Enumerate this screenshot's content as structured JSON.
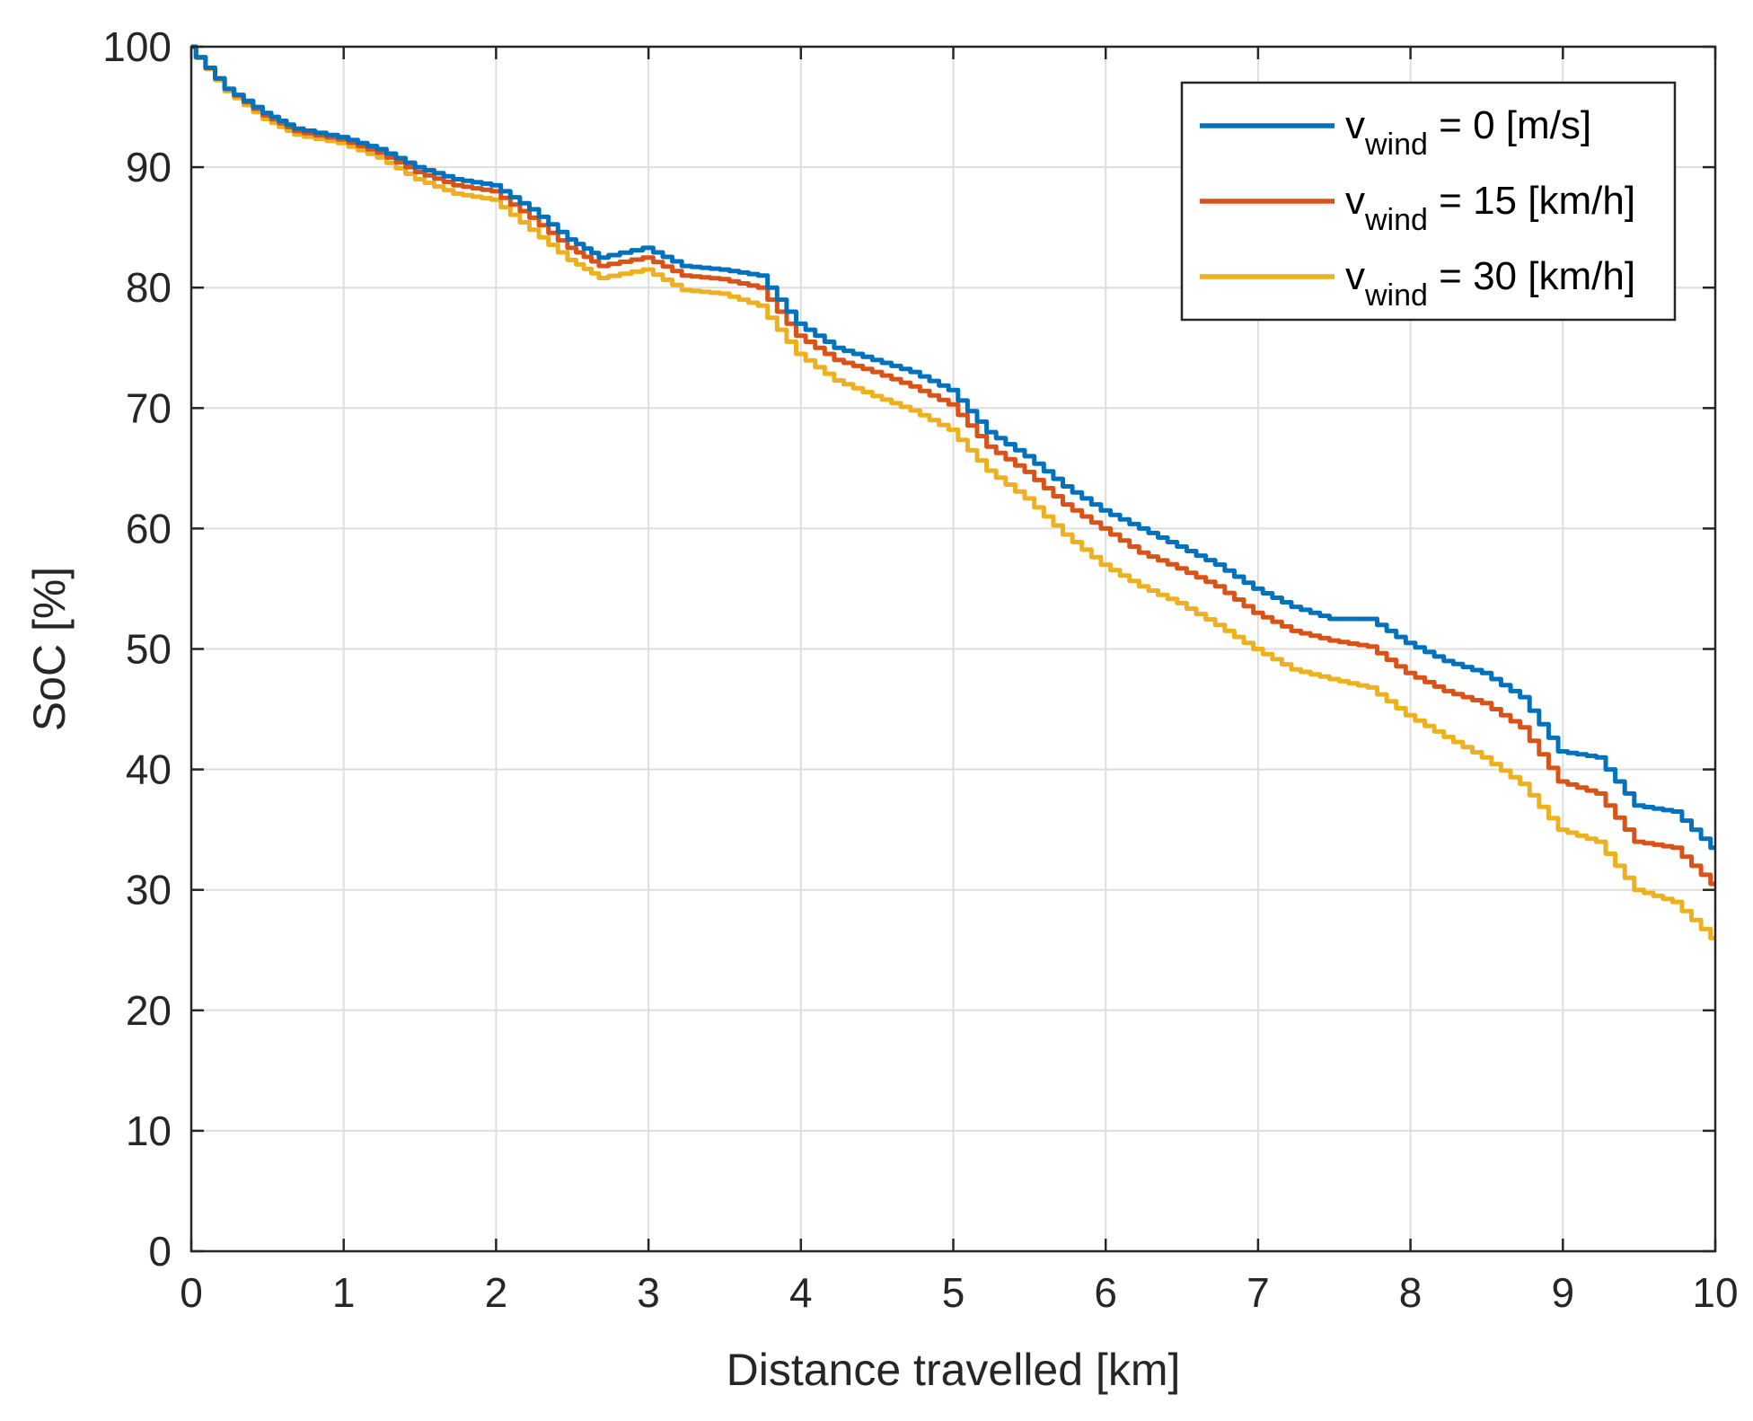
{
  "chart_data": {
    "type": "line",
    "title": "",
    "xlabel": "Distance travelled [km]",
    "ylabel": "SoC [%]",
    "xlim": [
      0,
      10
    ],
    "ylim": [
      0,
      100
    ],
    "grid": true,
    "legend_position": "top-right",
    "x_ticks": [
      "0",
      "1",
      "2",
      "3",
      "4",
      "5",
      "6",
      "7",
      "8",
      "9",
      "10"
    ],
    "y_ticks": [
      "0",
      "10",
      "20",
      "30",
      "40",
      "50",
      "60",
      "70",
      "80",
      "90",
      "100"
    ],
    "x": [
      0,
      0.25,
      0.5,
      0.7,
      1.0,
      1.25,
      1.5,
      1.75,
      2.0,
      2.25,
      2.5,
      2.7,
      3.0,
      3.25,
      3.5,
      3.75,
      4.0,
      4.25,
      4.5,
      4.75,
      5.0,
      5.25,
      5.5,
      5.75,
      6.0,
      6.25,
      6.5,
      6.75,
      7.0,
      7.25,
      7.5,
      7.75,
      8.0,
      8.25,
      8.5,
      8.75,
      9.0,
      9.25,
      9.5,
      9.75,
      10.0
    ],
    "series": [
      {
        "name": "v_wind = 0 [m/s]",
        "legend_base": "v",
        "legend_sub": "wind",
        "legend_rest": " = 0 [m/s]",
        "color": "#0072BD",
        "values": [
          100,
          96.5,
          94.5,
          93.2,
          92.5,
          91.5,
          90.0,
          89.0,
          88.5,
          86.5,
          84.0,
          82.5,
          83.3,
          81.8,
          81.5,
          81.0,
          77.0,
          75.0,
          74.0,
          73.0,
          71.5,
          68.0,
          66.0,
          63.5,
          61.5,
          60.0,
          58.5,
          57.0,
          55.0,
          53.5,
          52.5,
          52.5,
          50.5,
          49.0,
          48.0,
          46.0,
          41.5,
          41.0,
          37.0,
          36.5,
          33.5
        ]
      },
      {
        "name": "v_wind = 15 [km/h]",
        "legend_base": "v",
        "legend_sub": "wind",
        "legend_rest": " = 15 [km/h]",
        "color": "#D95319",
        "values": [
          100,
          96.5,
          94.3,
          93.0,
          92.3,
          91.2,
          89.6,
          88.5,
          88.0,
          85.8,
          83.3,
          81.8,
          82.5,
          81.0,
          80.7,
          80.0,
          76.0,
          74.0,
          73.0,
          71.8,
          70.3,
          66.8,
          64.7,
          62.0,
          60.0,
          58.0,
          56.7,
          55.2,
          53.0,
          51.5,
          50.7,
          50.2,
          48.0,
          46.5,
          45.5,
          43.5,
          39.0,
          38.0,
          34.0,
          33.5,
          30.5
        ]
      },
      {
        "name": "v_wind = 30 [km/h]",
        "legend_base": "v",
        "legend_sub": "wind",
        "legend_rest": " = 30 [km/h]",
        "color": "#EDB120",
        "values": [
          100,
          96.3,
          94.0,
          92.7,
          92.0,
          90.8,
          89.0,
          87.8,
          87.3,
          84.8,
          82.3,
          80.8,
          81.5,
          79.8,
          79.5,
          78.5,
          74.5,
          72.3,
          71.0,
          69.8,
          68.2,
          64.8,
          62.5,
          59.5,
          57.0,
          55.2,
          53.8,
          52.0,
          50.0,
          48.3,
          47.5,
          46.8,
          44.5,
          42.7,
          41.0,
          38.8,
          35.0,
          34.0,
          30.0,
          29.0,
          26.0
        ]
      }
    ]
  }
}
